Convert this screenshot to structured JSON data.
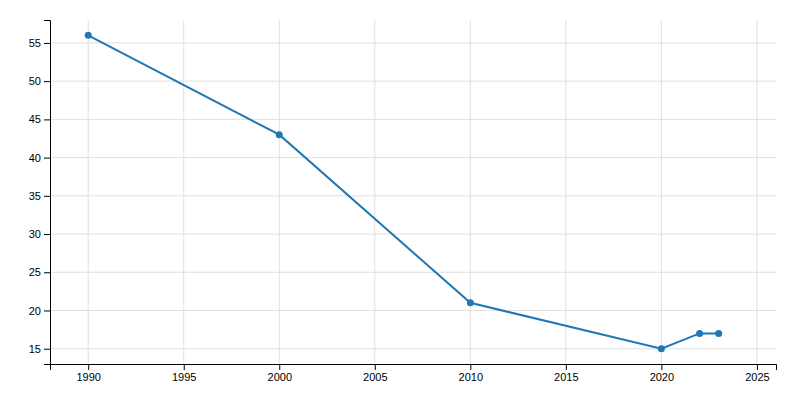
{
  "chart_data": {
    "type": "line",
    "x": [
      1990,
      2000,
      2010,
      2020,
      2022,
      2023
    ],
    "values": [
      56,
      43,
      21,
      15,
      17,
      17
    ],
    "marker": "circle",
    "xlim": [
      1988,
      2026
    ],
    "ylim": [
      13,
      58
    ],
    "xticks": [
      1990,
      1995,
      2000,
      2005,
      2010,
      2015,
      2020,
      2025
    ],
    "yticks": [
      15,
      20,
      25,
      30,
      35,
      40,
      45,
      50,
      55
    ],
    "grid": true
  }
}
